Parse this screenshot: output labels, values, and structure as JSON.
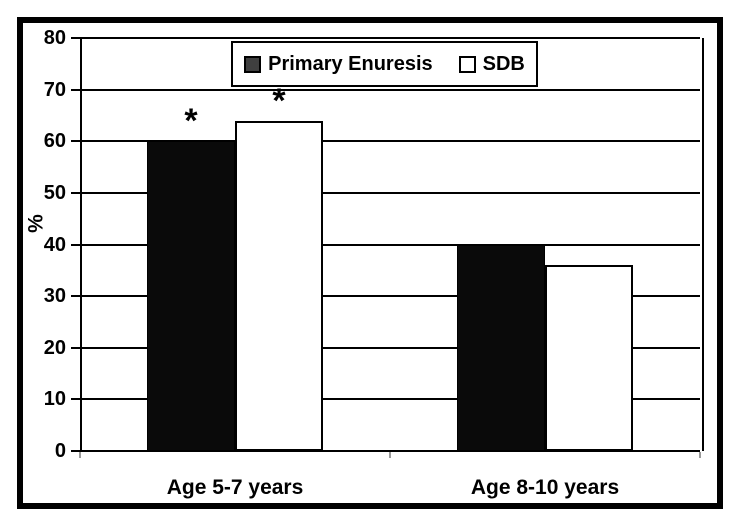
{
  "chart_data": {
    "type": "bar",
    "title": "",
    "xlabel": "",
    "ylabel": "%",
    "categories": [
      "Age 5-7 years",
      "Age 8-10 years"
    ],
    "series": [
      {
        "name": "Primary Enuresis",
        "marker": "filled-square",
        "fill": "#0a0a0a",
        "values": [
          60,
          40
        ]
      },
      {
        "name": "SDB",
        "marker": "open-square",
        "fill": "#ffffff",
        "values": [
          64,
          36
        ]
      }
    ],
    "ylim": [
      0,
      80
    ],
    "yticks": [
      0,
      10,
      20,
      30,
      40,
      50,
      60,
      70,
      80
    ],
    "grid": "horizontal",
    "legend_position": "top-center",
    "annotations": [
      {
        "category": "Age 5-7 years",
        "series": "Primary Enuresis",
        "text": "*"
      },
      {
        "category": "Age 5-7 years",
        "series": "SDB",
        "text": "*"
      }
    ]
  },
  "colors": {
    "bar_primary": "#0a0a0a",
    "bar_sdb": "#ffffff",
    "legend_filled_marker": "#3f3f3f",
    "axis": "#000000",
    "frame": "#000000",
    "category_tick": "#9a9a9a",
    "background": "#ffffff"
  }
}
